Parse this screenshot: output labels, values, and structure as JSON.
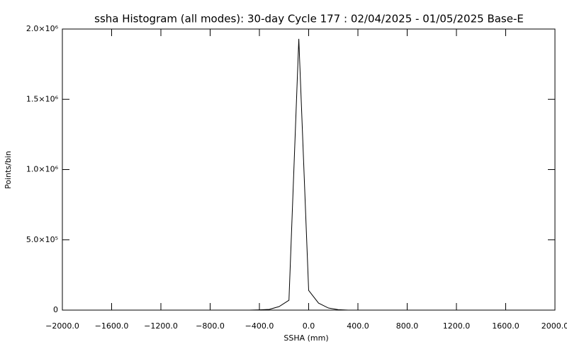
{
  "chart_data": {
    "type": "line",
    "title": "ssha Histogram (all modes): 30-day Cycle 177 : 02/04/2025 - 01/05/2025 Base-E",
    "x_label": "SSHA (mm)",
    "y_label": "Points/bin",
    "x": [
      -480,
      -400,
      -320,
      -240,
      -160,
      -80,
      0,
      80,
      160,
      240,
      320
    ],
    "series": [
      {
        "color": "#000000",
        "values": [
          0,
          2000,
          5000,
          25000,
          70000,
          1930000,
          140000,
          50000,
          15000,
          3000,
          0
        ]
      }
    ],
    "xlim": [
      -2000,
      2000
    ],
    "xticks": [
      {
        "value": -2000,
        "label": "−2000.0"
      },
      {
        "value": -1600,
        "label": "−1600.0"
      },
      {
        "value": -1200,
        "label": "−1200.0"
      },
      {
        "value": -800,
        "label": "−800.0"
      },
      {
        "value": -400,
        "label": "−400.0"
      },
      {
        "value": 0,
        "label": "0.0"
      },
      {
        "value": 400,
        "label": "400.0"
      },
      {
        "value": 800,
        "label": "800.0"
      },
      {
        "value": 1200,
        "label": "1200.0"
      },
      {
        "value": 1600,
        "label": "1600.0"
      },
      {
        "value": 2000,
        "label": "2000.0"
      }
    ],
    "ylim": [
      0,
      2000000
    ],
    "yticks": [
      0,
      {
        "value": 500000,
        "label": "5.0×10⁵"
      },
      {
        "value": 1000000,
        "label": "1.0×10⁶"
      },
      {
        "value": 1500000,
        "label": "1.5×10⁶"
      },
      {
        "value": 2000000,
        "label": "2.0×10⁶"
      }
    ]
  }
}
